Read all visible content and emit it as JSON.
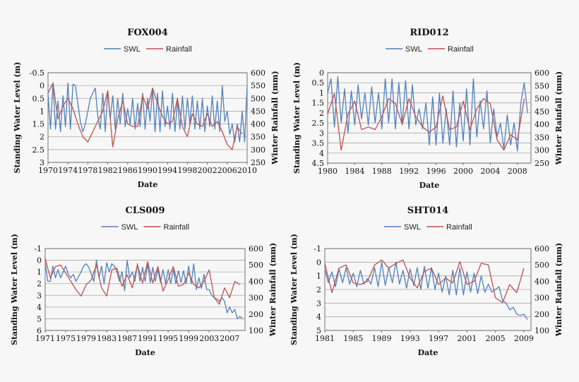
{
  "colors": {
    "swl": "#4f81bd",
    "rainfall": "#c0504d",
    "grid": "#a9a9a9"
  },
  "chart_data": [
    {
      "type": "line",
      "title": "FOX004",
      "xlabel": "Date",
      "ylabel": "Standing Water Level (m)",
      "y2label": "Winter Rainfall (mm)",
      "legend": [
        "SWL",
        "Rainfall"
      ],
      "legend_position": "top-center",
      "grid": true,
      "xlim": [
        1970,
        2010
      ],
      "xticks": [
        "1970",
        "1974",
        "1978",
        "1982",
        "1986",
        "1990",
        "1994",
        "1998",
        "2002",
        "2006",
        "2010"
      ],
      "ylim": [
        -0.5,
        3
      ],
      "y_inverted": true,
      "yticks": [
        "-0.5",
        "0",
        "0.5",
        "1",
        "1.5",
        "2",
        "2.5",
        "3"
      ],
      "y2lim": [
        250,
        600
      ],
      "y2ticks": [
        "250",
        "300",
        "350",
        "400",
        "450",
        "500",
        "550",
        "600"
      ],
      "series": [
        {
          "name": "SWL",
          "axis": "left",
          "x": [
            1970,
            1970.5,
            1971,
            1971.5,
            1972,
            1972.5,
            1973,
            1973.5,
            1974,
            1974.5,
            1975,
            1975.5,
            1976,
            1976.5,
            1977,
            1977.5,
            1978,
            1978.5,
            1979,
            1979.5,
            1980,
            1980.5,
            1981,
            1981.5,
            1982,
            1982.5,
            1983,
            1983.5,
            1984,
            1984.5,
            1985,
            1985.5,
            1986,
            1986.5,
            1987,
            1987.5,
            1988,
            1988.5,
            1989,
            1989.5,
            1990,
            1990.5,
            1991,
            1991.5,
            1992,
            1992.5,
            1993,
            1993.5,
            1994,
            1994.5,
            1995,
            1995.5,
            1996,
            1996.5,
            1997,
            1997.5,
            1998,
            1998.5,
            1999,
            1999.5,
            2000,
            2000.5,
            2001,
            2001.5,
            2002,
            2002.5,
            2003,
            2003.5,
            2004,
            2004.5,
            2005,
            2005.5,
            2006,
            2006.5,
            2007,
            2007.5,
            2008,
            2008.5,
            2009,
            2009.5,
            2010
          ],
          "y": [
            0.3,
            1.7,
            -0.1,
            1.7,
            0.6,
            1.8,
            0.4,
            1.6,
            -0.1,
            1.7,
            -0.05,
            0.0,
            0.7,
            1.4,
            1.8,
            1.5,
            1.0,
            0.5,
            0.3,
            0.1,
            1.2,
            1.7,
            0.3,
            1.8,
            0.2,
            1.3,
            0.4,
            1.7,
            0.5,
            1.5,
            0.3,
            1.6,
            0.9,
            1.5,
            0.5,
            1.7,
            0.7,
            1.6,
            0.3,
            1.7,
            0.5,
            1.4,
            0.1,
            1.8,
            0.3,
            1.8,
            0.2,
            1.6,
            0.8,
            1.7,
            0.3,
            1.8,
            0.6,
            1.7,
            0.4,
            1.7,
            0.5,
            1.5,
            0.4,
            1.7,
            0.6,
            1.7,
            0.5,
            1.8,
            0.8,
            1.6,
            0.4,
            1.7,
            0.6,
            1.8,
            0.0,
            1.4,
            1.0,
            1.9,
            1.5,
            2.2,
            1.5,
            2.2,
            1.0,
            2.2,
            0.0
          ]
        },
        {
          "name": "Rainfall",
          "axis": "right",
          "x": [
            1970,
            1971,
            1972,
            1973,
            1974,
            1975,
            1976,
            1977,
            1978,
            1979,
            1980,
            1981,
            1982,
            1983,
            1984,
            1985,
            1986,
            1987,
            1988,
            1989,
            1990,
            1991,
            1992,
            1993,
            1994,
            1995,
            1996,
            1997,
            1998,
            1999,
            2000,
            2001,
            2002,
            2003,
            2004,
            2005,
            2006,
            2007,
            2008,
            2009
          ],
          "y": [
            520,
            560,
            420,
            470,
            500,
            460,
            400,
            350,
            330,
            370,
            410,
            450,
            530,
            310,
            420,
            490,
            400,
            390,
            390,
            510,
            460,
            540,
            480,
            430,
            400,
            410,
            500,
            390,
            350,
            440,
            400,
            390,
            440,
            390,
            410,
            370,
            320,
            300,
            390,
            360
          ]
        }
      ]
    },
    {
      "type": "line",
      "title": "RID012",
      "xlabel": "Date",
      "ylabel": "Standing Water Level (m)",
      "y2label": "Winter Rainfall (mm)",
      "legend": [
        "SWL",
        "Rainfall"
      ],
      "legend_position": "top-center",
      "grid": true,
      "xlim": [
        1980,
        2010
      ],
      "xticks": [
        "1980",
        "1984",
        "1988",
        "1992",
        "1996",
        "2000",
        "2004",
        "2008"
      ],
      "ylim": [
        0,
        4.5
      ],
      "y_inverted": true,
      "yticks": [
        "0",
        "0.5",
        "1",
        "1.5",
        "2",
        "2.5",
        "3",
        "3.5",
        "4",
        "4.5"
      ],
      "y2lim": [
        250,
        600
      ],
      "y2ticks": [
        "250",
        "300",
        "350",
        "400",
        "450",
        "500",
        "550",
        "600"
      ],
      "series": [
        {
          "name": "SWL",
          "axis": "left",
          "x": [
            1980,
            1980.5,
            1981,
            1981.5,
            1982,
            1982.5,
            1983,
            1983.5,
            1984,
            1984.5,
            1985,
            1985.5,
            1986,
            1986.5,
            1987,
            1987.5,
            1988,
            1988.5,
            1989,
            1989.5,
            1990,
            1990.5,
            1991,
            1991.5,
            1992,
            1992.5,
            1993,
            1993.5,
            1994,
            1994.5,
            1995,
            1995.5,
            1996,
            1996.5,
            1997,
            1997.5,
            1998,
            1998.5,
            1999,
            1999.5,
            2000,
            2000.5,
            2001,
            2001.5,
            2002,
            2002.5,
            2003,
            2003.5,
            2004,
            2004.5,
            2005,
            2005.5,
            2006,
            2006.5,
            2007,
            2007.5,
            2008,
            2008.5,
            2009,
            2009.5
          ],
          "y": [
            1.0,
            0.3,
            2.7,
            0.2,
            2.5,
            0.8,
            3.0,
            0.9,
            2.6,
            0.6,
            2.3,
            1.0,
            2.6,
            0.7,
            2.5,
            1.0,
            2.8,
            0.3,
            2.5,
            0.3,
            2.8,
            0.5,
            2.6,
            0.4,
            2.8,
            0.6,
            2.6,
            1.8,
            2.8,
            1.5,
            3.6,
            1.2,
            3.6,
            1.0,
            3.5,
            1.8,
            3.6,
            0.9,
            3.7,
            1.5,
            3.4,
            0.8,
            3.6,
            0.3,
            3.2,
            1.4,
            2.8,
            0.9,
            3.5,
            1.8,
            3.2,
            2.5,
            3.8,
            2.1,
            3.6,
            2.5,
            3.9,
            1.5,
            0.5,
            2.0
          ]
        },
        {
          "name": "Rainfall",
          "axis": "right",
          "x": [
            1980,
            1981,
            1982,
            1983,
            1984,
            1985,
            1986,
            1987,
            1988,
            1989,
            1990,
            1991,
            1992,
            1993,
            1994,
            1995,
            1996,
            1997,
            1998,
            1999,
            2000,
            2001,
            2002,
            2003,
            2004,
            2005,
            2006,
            2007,
            2008,
            2009
          ],
          "y": [
            440,
            520,
            300,
            440,
            490,
            380,
            390,
            380,
            430,
            500,
            480,
            400,
            500,
            430,
            390,
            370,
            390,
            510,
            380,
            390,
            490,
            380,
            460,
            500,
            480,
            340,
            300,
            360,
            340,
            500
          ]
        }
      ]
    },
    {
      "type": "line",
      "title": "CLS009",
      "xlabel": "Date",
      "ylabel": "Standing Water Level (m)",
      "y2label": "Winter Rainfall (mm)",
      "legend": [
        "SWL",
        "Rainfall"
      ],
      "legend_position": "top-center",
      "grid": true,
      "xlim": [
        1971,
        2010
      ],
      "xticks": [
        "1971",
        "1975",
        "1979",
        "1983",
        "1987",
        "1991",
        "1995",
        "1999",
        "2003",
        "2007"
      ],
      "ylim": [
        -1,
        6
      ],
      "y_inverted": true,
      "yticks": [
        "-1",
        "0",
        "1",
        "2",
        "3",
        "4",
        "5",
        "6"
      ],
      "y2lim": [
        100,
        600
      ],
      "y2ticks": [
        "100",
        "200",
        "300",
        "400",
        "500",
        "600"
      ],
      "series": [
        {
          "name": "SWL",
          "axis": "left",
          "x": [
            1971,
            1971.5,
            1972,
            1972.5,
            1973,
            1973.5,
            1974,
            1974.5,
            1975,
            1975.5,
            1976,
            1976.5,
            1977,
            1977.5,
            1978,
            1978.5,
            1979,
            1979.5,
            1980,
            1980.5,
            1981,
            1981.5,
            1982,
            1982.5,
            1983,
            1983.5,
            1984,
            1984.5,
            1985,
            1985.5,
            1986,
            1986.5,
            1987,
            1987.5,
            1988,
            1988.5,
            1989,
            1989.5,
            1990,
            1990.5,
            1991,
            1991.5,
            1992,
            1992.5,
            1993,
            1993.5,
            1994,
            1994.5,
            1995,
            1995.5,
            1996,
            1996.5,
            1997,
            1997.5,
            1998,
            1998.5,
            1999,
            1999.5,
            2000,
            2000.5,
            2001,
            2001.5,
            2002,
            2002.5,
            2003,
            2003.5,
            2004,
            2004.5,
            2005,
            2005.5,
            2006,
            2006.5,
            2007,
            2007.5,
            2008,
            2008.5,
            2009,
            2009.5
          ],
          "y": [
            0.2,
            1.8,
            1.8,
            0.5,
            1.5,
            0.8,
            1.5,
            1.0,
            0.5,
            1.2,
            1.5,
            1.2,
            1.8,
            1.4,
            1.0,
            0.5,
            0.3,
            0.6,
            1.2,
            1.8,
            0.0,
            1.5,
            0.5,
            2.0,
            0.2,
            1.0,
            0.3,
            0.5,
            1.0,
            1.8,
            1.0,
            2.6,
            0.0,
            1.5,
            1.0,
            1.8,
            0.3,
            1.8,
            0.6,
            1.8,
            0.3,
            1.9,
            0.6,
            1.8,
            0.8,
            1.9,
            0.8,
            2.0,
            0.8,
            2.0,
            0.8,
            2.0,
            0.9,
            1.9,
            0.9,
            2.0,
            0.5,
            2.0,
            0.3,
            2.5,
            1.5,
            2.4,
            1.2,
            2.5,
            2.5,
            3.0,
            3.2,
            3.3,
            3.5,
            3.2,
            3.5,
            4.5,
            4.0,
            4.5,
            4.2,
            5.0,
            4.8,
            5.0
          ]
        },
        {
          "name": "Rainfall",
          "axis": "right",
          "x": [
            1971,
            1972,
            1973,
            1974,
            1975,
            1976,
            1977,
            1978,
            1979,
            1980,
            1981,
            1982,
            1983,
            1984,
            1985,
            1986,
            1987,
            1988,
            1989,
            1990,
            1991,
            1992,
            1993,
            1994,
            1995,
            1996,
            1997,
            1998,
            1999,
            2000,
            2001,
            2002,
            2003,
            2004,
            2005,
            2006,
            2007,
            2008,
            2009
          ],
          "y": [
            540,
            420,
            490,
            500,
            450,
            400,
            350,
            310,
            380,
            410,
            500,
            360,
            310,
            470,
            480,
            370,
            440,
            360,
            500,
            390,
            520,
            390,
            490,
            340,
            410,
            490,
            370,
            380,
            450,
            380,
            360,
            400,
            470,
            300,
            260,
            360,
            300,
            400,
            380
          ]
        }
      ]
    },
    {
      "type": "line",
      "title": "SHT014",
      "xlabel": "Date",
      "ylabel": "Standing Water Level (m)",
      "y2label": "Winter Rainfall (mm)",
      "legend": [
        "SWL",
        "Rainfall"
      ],
      "legend_position": "top-center",
      "grid": true,
      "xlim": [
        1981,
        2010
      ],
      "xticks": [
        "1981",
        "1985",
        "1989",
        "1993",
        "1997",
        "2001",
        "2005",
        "2009"
      ],
      "ylim": [
        -1,
        5
      ],
      "y_inverted": true,
      "yticks": [
        "-1",
        "0",
        "1",
        "2",
        "3",
        "4",
        "5"
      ],
      "y2lim": [
        100,
        600
      ],
      "y2ticks": [
        "100",
        "200",
        "300",
        "400",
        "500",
        "600"
      ],
      "series": [
        {
          "name": "SWL",
          "axis": "left",
          "x": [
            1981,
            1981.5,
            1982,
            1982.5,
            1983,
            1983.5,
            1984,
            1984.5,
            1985,
            1985.5,
            1986,
            1986.5,
            1987,
            1987.5,
            1988,
            1988.5,
            1989,
            1989.5,
            1990,
            1990.5,
            1991,
            1991.5,
            1992,
            1992.5,
            1993,
            1993.5,
            1994,
            1994.5,
            1995,
            1995.5,
            1996,
            1996.5,
            1997,
            1997.5,
            1998,
            1998.5,
            1999,
            1999.5,
            2000,
            2000.5,
            2001,
            2001.5,
            2002,
            2002.5,
            2003,
            2003.5,
            2004,
            2004.5,
            2005,
            2005.5,
            2006,
            2006.5,
            2007,
            2007.5,
            2008,
            2008.5,
            2009,
            2009.5
          ],
          "y": [
            0.5,
            1.5,
            0.7,
            1.8,
            0.5,
            1.5,
            0.4,
            1.6,
            0.8,
            1.8,
            0.6,
            1.6,
            1.2,
            1.6,
            0.4,
            1.8,
            0.0,
            1.7,
            0.4,
            1.5,
            0.0,
            1.6,
            0.6,
            1.9,
            0.5,
            1.7,
            0.4,
            2.0,
            0.3,
            1.9,
            0.4,
            2.0,
            0.8,
            2.2,
            1.0,
            2.4,
            0.6,
            2.4,
            0.4,
            2.4,
            0.7,
            2.2,
            0.8,
            2.3,
            1.0,
            2.2,
            1.6,
            2.2,
            2.0,
            1.8,
            2.8,
            3.0,
            3.5,
            3.3,
            3.8,
            3.9,
            3.8,
            4.2
          ]
        },
        {
          "name": "Rainfall",
          "axis": "right",
          "x": [
            1981,
            1982,
            1983,
            1984,
            1985,
            1986,
            1987,
            1988,
            1989,
            1990,
            1991,
            1992,
            1993,
            1994,
            1995,
            1996,
            1997,
            1998,
            1999,
            2000,
            2001,
            2002,
            2003,
            2004,
            2005,
            2006,
            2007,
            2008,
            2009
          ],
          "y": [
            510,
            330,
            480,
            500,
            390,
            380,
            400,
            500,
            530,
            480,
            510,
            530,
            420,
            360,
            460,
            480,
            380,
            420,
            390,
            520,
            380,
            400,
            510,
            500,
            300,
            270,
            380,
            330,
            480
          ]
        }
      ]
    }
  ]
}
